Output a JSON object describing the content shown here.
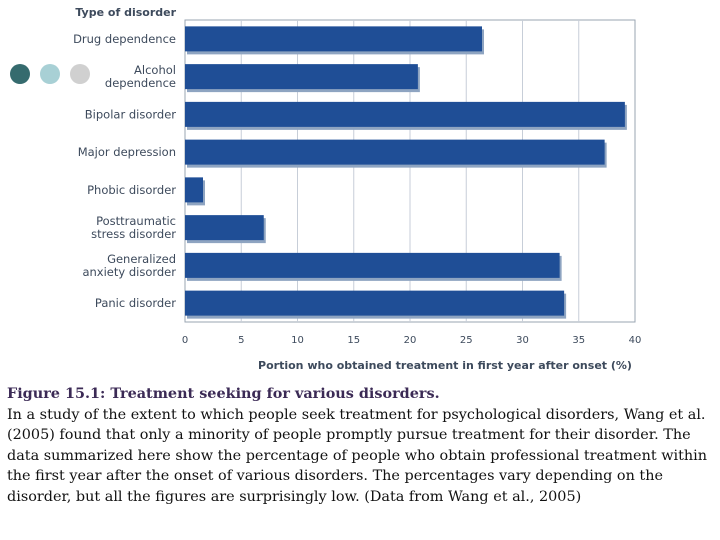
{
  "colors": {
    "bar": "#1f4e96",
    "bar_shadow": "#8ea4c1",
    "frame": "#9aa4b2",
    "grid": "#c7ced8",
    "label_text": "#3d4a5c",
    "dot1": "#356b6e",
    "dot2": "#a8d0d5",
    "dot3": "#d0d0d0"
  },
  "chart_data": {
    "type": "bar",
    "orientation": "horizontal",
    "category_axis_title": "Type of disorder",
    "xlabel": "Portion who obtained treatment in first year after onset (%)",
    "xlim": [
      0,
      40
    ],
    "xticks": [
      0,
      5,
      10,
      15,
      20,
      25,
      30,
      35,
      40
    ],
    "grid": true,
    "categories": [
      [
        "Drug dependence"
      ],
      [
        "Alcohol",
        "dependence"
      ],
      [
        "Bipolar disorder"
      ],
      [
        "Major depression"
      ],
      [
        "Phobic disorder"
      ],
      [
        "Posttraumatic",
        "stress disorder"
      ],
      [
        "Generalized",
        "anxiety disorder"
      ],
      [
        "Panic disorder"
      ]
    ],
    "values": [
      26.4,
      20.7,
      39.1,
      37.3,
      1.6,
      7.0,
      33.3,
      33.7
    ]
  },
  "caption": {
    "title": "Figure 15.1: Treatment seeking for various disorders.",
    "body": "In a study of the extent to which people seek treatment for psychological disorders, Wang et al. (2005) found that only a minority of people promptly pursue treatment for their disorder. The data summarized here show the percentage of people who obtain professional treatment within the first year after the onset of various disorders. The percentages vary depending on the disorder, but all the figures are surprisingly low. (Data from Wang et al., 2005)"
  }
}
